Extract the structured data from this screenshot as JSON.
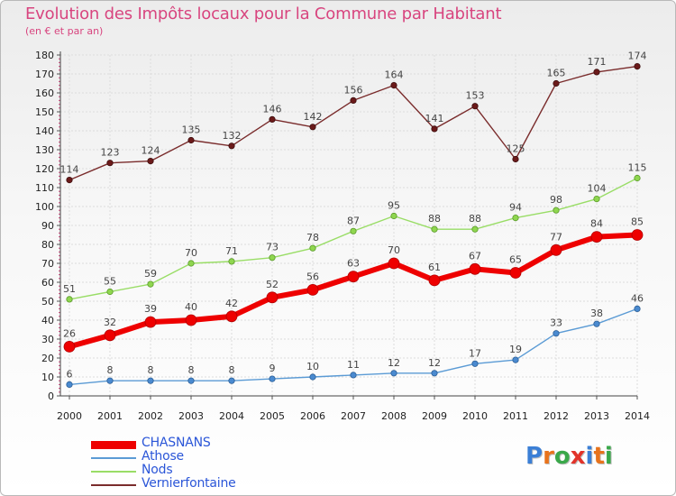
{
  "title": "Evolution des Impôts locaux pour la Commune par Habitant",
  "subtitle": "(en € et par an)",
  "logo": {
    "text": "Proxiti",
    "letters": [
      "P",
      "r",
      "o",
      "x",
      "i",
      "t",
      "i"
    ],
    "colors": [
      "#3b7fd6",
      "#e8731c",
      "#3aa84a",
      "#e2332a",
      "#3b7fd6",
      "#e8731c",
      "#3aa84a"
    ]
  },
  "chart_data": {
    "type": "line",
    "x": [
      "2000",
      "2001",
      "2002",
      "2003",
      "2004",
      "2005",
      "2006",
      "2007",
      "2008",
      "2009",
      "2010",
      "2011",
      "2012",
      "2013",
      "2014"
    ],
    "ylim": [
      0,
      180
    ],
    "yticks": [
      0,
      10,
      20,
      30,
      40,
      50,
      60,
      70,
      80,
      90,
      100,
      110,
      120,
      130,
      140,
      150,
      160,
      170,
      180
    ],
    "grid": true,
    "legend_position": "bottom-left",
    "series": [
      {
        "name": "CHASNANS",
        "color": "#ee0000",
        "values": [
          26,
          32,
          39,
          40,
          42,
          52,
          56,
          63,
          70,
          61,
          67,
          65,
          77,
          84,
          85
        ]
      },
      {
        "name": "Athose",
        "color": "#5b9bd5",
        "values": [
          6,
          8,
          8,
          8,
          8,
          9,
          10,
          11,
          12,
          12,
          17,
          19,
          33,
          38,
          46
        ]
      },
      {
        "name": "Nods",
        "color": "#99dd66",
        "values": [
          51,
          55,
          59,
          70,
          71,
          73,
          78,
          87,
          95,
          88,
          88,
          94,
          98,
          104,
          115
        ]
      },
      {
        "name": "Vernierfontaine",
        "color": "#7a2c2c",
        "values": [
          114,
          123,
          124,
          135,
          132,
          146,
          142,
          156,
          164,
          141,
          153,
          125,
          165,
          171,
          174
        ]
      }
    ]
  }
}
